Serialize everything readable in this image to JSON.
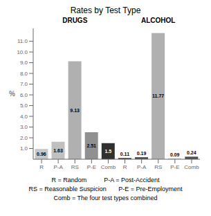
{
  "chart_data": {
    "type": "bar",
    "title": "Rates by Test Type",
    "categories": [
      "R",
      "P-A",
      "RS",
      "P-E",
      "Comb",
      "R",
      "P-A",
      "RS",
      "P-E",
      "Comb"
    ],
    "values": [
      0.96,
      1.63,
      9.13,
      2.51,
      1.5,
      0.11,
      0.19,
      11.77,
      0.09,
      0.24
    ],
    "colors": [
      "#c8c8c8",
      "#c0c0c0",
      "#b0b0b0",
      "#909090",
      "#303030",
      "#303030",
      "#505050",
      "#b0b0b0",
      "#d0d0d0",
      "#505050"
    ],
    "group_labels": [
      "DRUGS",
      "ALCOHOL"
    ],
    "y_label": "%",
    "ylim": [
      0,
      12.2
    ],
    "yticks": [
      {
        "value": 1.0,
        "label": "1.0"
      },
      {
        "value": 2.0,
        "label": "2.0"
      },
      {
        "value": 3.0,
        "label": "3.0"
      },
      {
        "value": 4.0,
        "label": "4.0"
      },
      {
        "value": 5.0,
        "label": "5.0"
      },
      {
        "value": 6.0,
        "label": "6.0"
      },
      {
        "value": 7.0,
        "label": "7.0"
      },
      {
        "value": 8.0,
        "label": "8.0"
      },
      {
        "value": 9.0,
        "label": "9.0"
      },
      {
        "value": 10.0,
        "label": "10.0"
      },
      {
        "value": 11.0,
        "label": "11.0"
      }
    ],
    "footnotes": [
      "R = Random          P-A = Post-Accident",
      "RS = Reasonable Suspicion       P-E = Pre-Employment",
      "Comb = The four test types combined"
    ],
    "data_labels": true,
    "grid": false
  }
}
